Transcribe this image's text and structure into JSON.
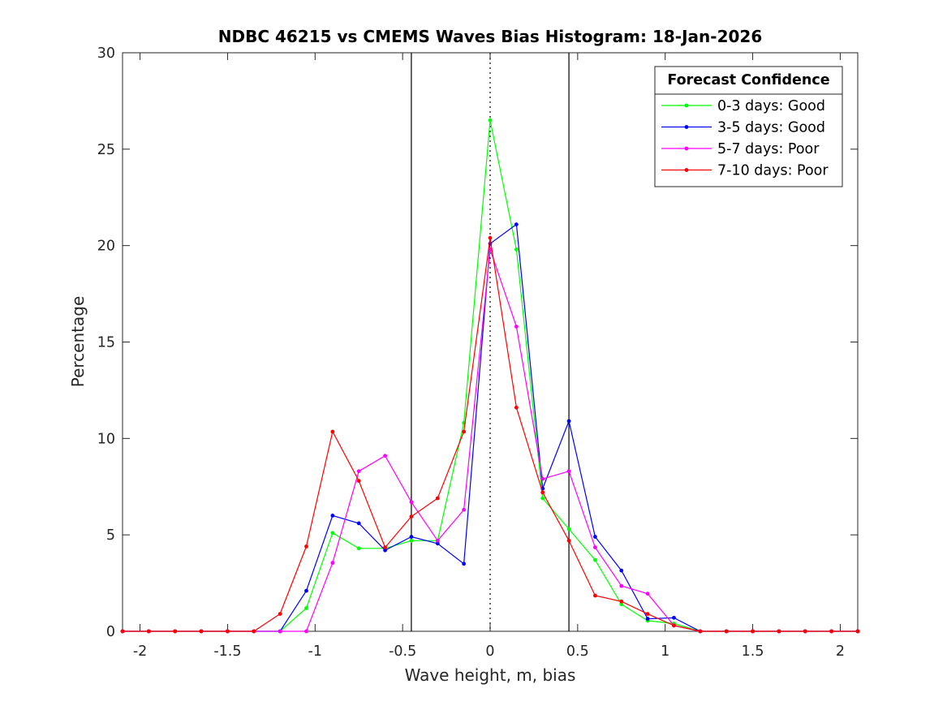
{
  "chart_data": {
    "type": "line",
    "title": "NDBC 46215 vs CMEMS Waves Bias Histogram: 18-Jan-2026",
    "xlabel": "Wave height, m, bias",
    "ylabel": "Percentage",
    "xlim": [
      -2.1,
      2.1
    ],
    "ylim": [
      0,
      30
    ],
    "xticks": [
      -2,
      -1.5,
      -1,
      -0.5,
      0,
      0.5,
      1,
      1.5,
      2
    ],
    "xtick_labels": [
      "-2",
      "-1.5",
      "-1",
      "-0.5",
      "0",
      "0.5",
      "1",
      "1.5",
      "2"
    ],
    "yticks": [
      0,
      5,
      10,
      15,
      20,
      25,
      30
    ],
    "ytick_labels": [
      "0",
      "5",
      "10",
      "15",
      "20",
      "25",
      "30"
    ],
    "grid": false,
    "legend": {
      "title": "Forecast Confidence",
      "position": "top-right"
    },
    "reference_lines": {
      "solid_x": [
        -0.45,
        0.45
      ],
      "dotted_x": [
        0
      ]
    },
    "x": [
      -2.1,
      -1.95,
      -1.8,
      -1.65,
      -1.5,
      -1.35,
      -1.2,
      -1.05,
      -0.9,
      -0.75,
      -0.6,
      -0.45,
      -0.3,
      -0.15,
      0,
      0.15,
      0.3,
      0.45,
      0.6,
      0.75,
      0.9,
      1.05,
      1.2,
      1.35,
      1.5,
      1.65,
      1.8,
      1.95,
      2.1
    ],
    "series": [
      {
        "name": "0-3 days: Good",
        "color": "#00ff00",
        "values": [
          0,
          0,
          0,
          0,
          0,
          0,
          0,
          1.2,
          5.1,
          4.3,
          4.3,
          4.7,
          4.7,
          10.8,
          26.5,
          19.8,
          6.9,
          5.3,
          3.7,
          1.4,
          0.55,
          0.4,
          0,
          0,
          0,
          0,
          0,
          0,
          0
        ]
      },
      {
        "name": "3-5 days: Good",
        "color": "#0000ff",
        "values": [
          0,
          0,
          0,
          0,
          0,
          0,
          0,
          2.1,
          6.0,
          5.6,
          4.2,
          4.9,
          4.55,
          3.5,
          20.1,
          21.1,
          7.4,
          10.9,
          4.9,
          3.15,
          0.65,
          0.7,
          0,
          0,
          0,
          0,
          0,
          0,
          0
        ]
      },
      {
        "name": "5-7 days: Poor",
        "color": "#ff00ff",
        "values": [
          0,
          0,
          0,
          0,
          0,
          0,
          0,
          0,
          3.55,
          8.3,
          9.1,
          6.7,
          4.7,
          6.3,
          19.8,
          15.8,
          7.9,
          8.3,
          4.35,
          2.35,
          1.95,
          0.3,
          0,
          0,
          0,
          0,
          0,
          0,
          0
        ]
      },
      {
        "name": "7-10 days: Poor",
        "color": "#ff0000",
        "values": [
          0,
          0,
          0,
          0,
          0,
          0,
          0.9,
          4.4,
          10.35,
          7.8,
          4.35,
          5.95,
          6.9,
          10.35,
          20.4,
          11.6,
          7.2,
          4.7,
          1.85,
          1.55,
          0.9,
          0.3,
          0,
          0,
          0,
          0,
          0,
          0,
          0
        ]
      }
    ]
  }
}
